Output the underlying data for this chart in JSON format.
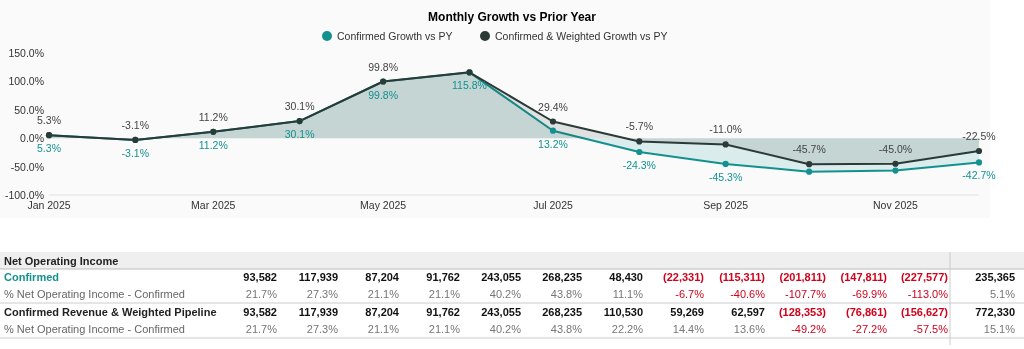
{
  "chart_data": [
    {
      "type": "area",
      "title": "Monthly Growth vs Prior Year",
      "x": [
        "2025-01",
        "2025-02",
        "2025-03",
        "2025-04",
        "2025-05",
        "2025-06",
        "2025-07",
        "2025-08",
        "2025-09",
        "2025-10",
        "2025-11",
        "2025-12"
      ],
      "series": [
        {
          "name": "Confirmed Growth vs PY",
          "color": "#13918f",
          "values": [
            5.3,
            -3.1,
            11.2,
            30.1,
            99.8,
            115.8,
            13.2,
            -24.3,
            -45.3,
            -59,
            -57,
            -42.7
          ],
          "value_labels": [
            "5.3%",
            "-3.1%",
            "11.2%",
            "30.1%",
            "99.8%",
            "115.8%",
            "13.2%",
            "-24.3%",
            "-45.3%",
            null,
            null,
            "-42.7%"
          ]
        },
        {
          "name": "Confirmed & Weighted Growth vs PY",
          "color": "#2b3a37",
          "values": [
            5.3,
            -3.1,
            11.2,
            30.1,
            99.8,
            116,
            29.4,
            -5.7,
            -11.0,
            -45.7,
            -45.0,
            -22.5
          ],
          "value_labels": [
            "5.3%",
            "-3.1%",
            "11.2%",
            "30.1%",
            "99.8%",
            null,
            "29.4%",
            "-5.7%",
            "-11.0%",
            "-45.7%",
            "-45.0%",
            "-22.5%"
          ]
        }
      ],
      "xlim": [
        "2025-01",
        "2025-12"
      ],
      "xticks": [
        {
          "value": "2025-01",
          "label": "Jan 2025"
        },
        {
          "value": "2025-03",
          "label": "Mar 2025"
        },
        {
          "value": "2025-05",
          "label": "May 2025"
        },
        {
          "value": "2025-07",
          "label": "Jul 2025"
        },
        {
          "value": "2025-09",
          "label": "Sep 2025"
        },
        {
          "value": "2025-11",
          "label": "Nov 2025"
        }
      ],
      "ylim": [
        -100,
        150
      ],
      "yticks": [
        {
          "value": -100,
          "label": "-100.0%"
        },
        {
          "value": -50,
          "label": "-50.0%"
        },
        {
          "value": 0,
          "label": "0.0%"
        },
        {
          "value": 50,
          "label": "50.0%"
        },
        {
          "value": 100,
          "label": "100.0%"
        },
        {
          "value": 150,
          "label": "150.0%"
        }
      ],
      "legend": "top",
      "marker": "circle",
      "grid": false
    },
    {
      "type": "other",
      "title": "Net Operating Income",
      "y_categories": [
        "Confirmed",
        "% Net Operating Income - Confirmed",
        "Confirmed Revenue & Weighted Pipeline",
        "% Net Operating Income - Confirmed"
      ],
      "cell_labels": [
        [
          "93,582",
          "117,939",
          "87,204",
          "91,762",
          "243,055",
          "268,235",
          "48,430",
          "(22,331)",
          "(115,311)",
          "(201,811)",
          "(147,811)",
          "(227,577)",
          "235,365"
        ],
        [
          "21.7%",
          "27.3%",
          "21.1%",
          "21.1%",
          "40.2%",
          "43.8%",
          "11.1%",
          "-6.7%",
          "-40.6%",
          "-107.7%",
          "-69.9%",
          "-113.0%",
          "5.1%"
        ],
        [
          "93,582",
          "117,939",
          "87,204",
          "91,762",
          "243,055",
          "268,235",
          "110,530",
          "59,269",
          "62,597",
          "(128,353)",
          "(76,861)",
          "(156,627)",
          "772,330"
        ],
        [
          "21.7%",
          "27.3%",
          "21.1%",
          "21.1%",
          "40.2%",
          "43.8%",
          "22.2%",
          "14.4%",
          "13.6%",
          "-49.2%",
          "-27.2%",
          "-57.5%",
          "15.1%"
        ]
      ]
    }
  ]
}
